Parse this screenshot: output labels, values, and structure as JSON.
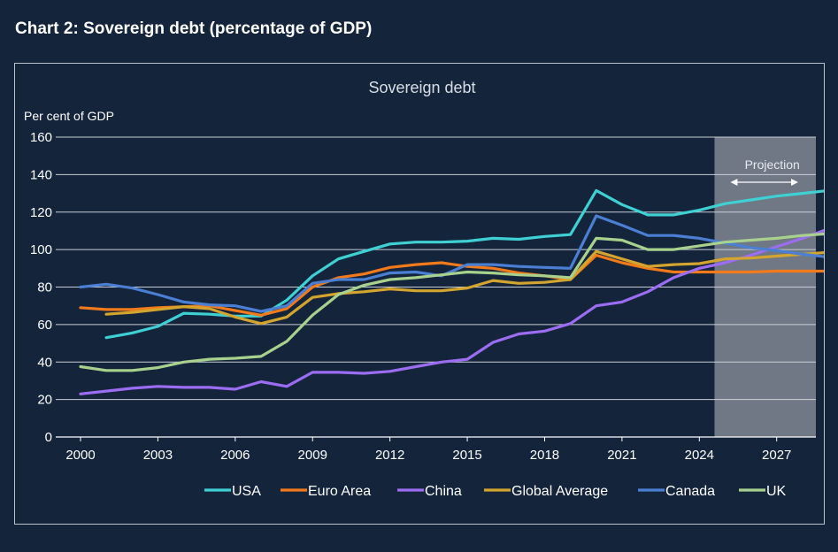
{
  "page": {
    "title": "Chart 2: Sovereign debt (percentage of GDP)"
  },
  "chart_data": {
    "type": "line",
    "title": "Sovereign debt",
    "ylabel": "Per cent of GDP",
    "xlabel": "",
    "ylim": [
      0,
      160
    ],
    "xlim": [
      2000,
      2029
    ],
    "yticks": [
      0,
      20,
      40,
      60,
      80,
      100,
      120,
      140,
      160
    ],
    "xticks": [
      2000,
      2003,
      2006,
      2009,
      2012,
      2015,
      2018,
      2021,
      2024,
      2027
    ],
    "grid": true,
    "legend_position": "bottom",
    "projection": {
      "label": "Projection",
      "from": 2025,
      "to": 2029
    },
    "series": [
      {
        "name": "USA",
        "color": "#3fd0d4",
        "x": [
          2001,
          2002,
          2003,
          2004,
          2005,
          2006,
          2007,
          2008,
          2009,
          2010,
          2011,
          2012,
          2013,
          2014,
          2015,
          2016,
          2017,
          2018,
          2019,
          2020,
          2021,
          2022,
          2023,
          2024,
          2025,
          2026,
          2027,
          2028,
          2029
        ],
        "y": [
          53,
          55.5,
          59,
          66,
          65.5,
          64.5,
          64.5,
          73,
          86,
          95,
          99,
          103,
          104,
          104,
          104.5,
          106,
          105.5,
          107,
          108,
          131.5,
          124,
          118.5,
          118.5,
          121,
          124.5,
          126.5,
          128.5,
          130,
          131.5
        ]
      },
      {
        "name": "Euro Area",
        "color": "#f27a1a",
        "x": [
          2000,
          2001,
          2002,
          2003,
          2004,
          2005,
          2006,
          2007,
          2008,
          2009,
          2010,
          2011,
          2012,
          2013,
          2014,
          2015,
          2016,
          2017,
          2018,
          2019,
          2020,
          2021,
          2022,
          2023,
          2024,
          2025,
          2026,
          2027,
          2028,
          2029
        ],
        "y": [
          69,
          68,
          68,
          69,
          69.5,
          70,
          67.5,
          65,
          68.5,
          80,
          85,
          87,
          90.5,
          92,
          93,
          91,
          90,
          87.5,
          86,
          84,
          97,
          93,
          90,
          88,
          88,
          88,
          88,
          88.5,
          88.5,
          88.5
        ]
      },
      {
        "name": "China",
        "color": "#9c6cf2",
        "x": [
          2000,
          2001,
          2002,
          2003,
          2004,
          2005,
          2006,
          2007,
          2008,
          2009,
          2010,
          2011,
          2012,
          2013,
          2014,
          2015,
          2016,
          2017,
          2018,
          2019,
          2020,
          2021,
          2022,
          2023,
          2024,
          2025,
          2026,
          2027,
          2028,
          2029
        ],
        "y": [
          23,
          24.5,
          26,
          27,
          26.5,
          26.5,
          25.5,
          29.5,
          27,
          34.5,
          34.5,
          34,
          35,
          37.5,
          40,
          41.5,
          50.5,
          55,
          56.5,
          60.5,
          70,
          72,
          77.5,
          85,
          90,
          93,
          97,
          101.5,
          106,
          111
        ]
      },
      {
        "name": "Global Average",
        "color": "#d4a52e",
        "x": [
          2001,
          2002,
          2003,
          2004,
          2005,
          2006,
          2007,
          2008,
          2009,
          2010,
          2011,
          2012,
          2013,
          2014,
          2015,
          2016,
          2017,
          2018,
          2019,
          2020,
          2021,
          2022,
          2023,
          2024,
          2025,
          2026,
          2027,
          2028,
          2029
        ],
        "y": [
          65.5,
          66.5,
          68,
          69.5,
          68.5,
          64,
          60.5,
          64,
          74.5,
          76.5,
          77.5,
          79,
          78,
          78,
          79.5,
          83.5,
          82,
          82.5,
          84,
          99,
          95,
          91,
          92,
          92.5,
          95,
          95.5,
          96.5,
          97.5,
          98.5
        ]
      },
      {
        "name": "Canada",
        "color": "#4a7fd4",
        "x": [
          2000,
          2001,
          2002,
          2003,
          2004,
          2005,
          2006,
          2007,
          2008,
          2009,
          2010,
          2011,
          2012,
          2013,
          2014,
          2015,
          2016,
          2017,
          2018,
          2019,
          2020,
          2021,
          2022,
          2023,
          2024,
          2025,
          2026,
          2027,
          2028,
          2029
        ],
        "y": [
          80,
          81.5,
          79.5,
          76,
          72,
          70.5,
          70,
          67,
          70,
          82,
          84,
          84,
          87.5,
          88,
          86,
          92,
          92,
          91,
          90.5,
          90,
          118,
          113,
          107.5,
          107.5,
          106,
          103.5,
          101,
          99.5,
          97.5,
          96
        ]
      },
      {
        "name": "UK",
        "color": "#a9d18e",
        "x": [
          2000,
          2001,
          2002,
          2003,
          2004,
          2005,
          2006,
          2007,
          2008,
          2009,
          2010,
          2011,
          2012,
          2013,
          2014,
          2015,
          2016,
          2017,
          2018,
          2019,
          2020,
          2021,
          2022,
          2023,
          2024,
          2025,
          2026,
          2027,
          2028,
          2029
        ],
        "y": [
          37.5,
          35.5,
          35.5,
          37,
          40,
          41.5,
          42,
          43,
          51,
          65,
          76,
          81,
          84,
          85,
          86.5,
          88,
          87.5,
          86.5,
          86,
          85,
          106,
          105,
          100,
          100,
          102,
          104,
          105,
          106,
          107.5,
          108.5
        ]
      }
    ]
  }
}
